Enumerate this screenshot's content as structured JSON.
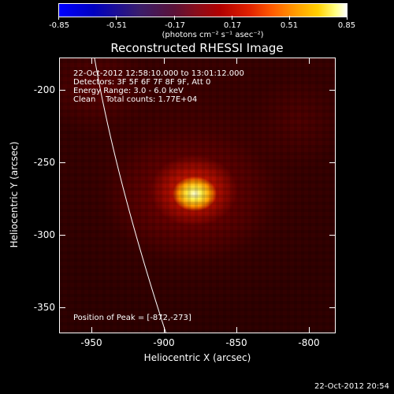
{
  "colorbar": {
    "ticks": [
      "-0.85",
      "-0.51",
      "-0.17",
      "0.17",
      "0.51",
      "0.85"
    ],
    "units": "(photons cm⁻² s⁻¹ asec⁻²)"
  },
  "title": "Reconstructed RHESSI Image",
  "info": {
    "time": "22-Oct-2012 12:58:10.000 to 13:01:12.000",
    "detectors": "Detectors: 3F 5F 6F 7F 8F 9F, Att 0",
    "energy": "Energy Range: 3.0 - 6.0 keV",
    "clean": "Clean    Total counts: 1.77E+04"
  },
  "peak_label": "Position of Peak = [-872,-273]",
  "x_axis": {
    "title": "Heliocentric X (arcsec)",
    "ticks": [
      "-950",
      "-900",
      "-850",
      "-800"
    ]
  },
  "y_axis": {
    "title": "Heliocentric Y (arcsec)",
    "ticks": [
      "-200",
      "-250",
      "-300",
      "-350"
    ]
  },
  "timestamp": "22-Oct-2012 20:54"
}
